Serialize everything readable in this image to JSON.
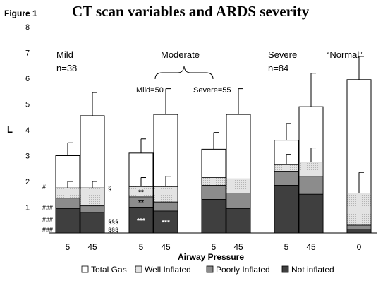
{
  "figure_label": "Figure 1",
  "chart_data": {
    "type": "bar",
    "title": "CT scan variables and ARDS severity",
    "xlabel": "Airway Pressure",
    "ylabel": "L",
    "ylim": [
      0,
      8
    ],
    "yticks": [
      "1",
      "2",
      "3",
      "4",
      "5",
      "6",
      "7",
      "8"
    ],
    "legend": [
      "Total Gas",
      "Well Inflated",
      "Poorly Inflated",
      "Not inflated"
    ],
    "groups": [
      {
        "label": "Mild",
        "sublabel": "n=38"
      },
      {
        "label": "Moderate",
        "sublabel": ""
      },
      {
        "label": "Severe",
        "sublabel": "n=84"
      },
      {
        "label": "“Normal”",
        "sublabel": ""
      }
    ],
    "subgroups": [
      {
        "label": "Mild=50"
      },
      {
        "label": "Severe=55"
      }
    ],
    "colors": {
      "total_gas": "#ffffff",
      "well_inflated": "#e3e3e3",
      "poorly_inflated": "#8c8c8c",
      "not_inflated": "#3f3f3f",
      "error_bar": "#000000"
    },
    "bars": [
      {
        "group": "Mild",
        "pressure": "5",
        "not_inflated": 0.95,
        "poorly_inflated": 0.4,
        "well_inflated": 0.4,
        "total_gas": 3.0,
        "error": 0.5,
        "well_error": 0.25,
        "marks": {
          "not_inflated": "",
          "poorly_inflated": ""
        }
      },
      {
        "group": "Mild",
        "pressure": "45",
        "not_inflated": 0.8,
        "poorly_inflated": 0.25,
        "well_inflated": 0.7,
        "total_gas": 4.55,
        "error": 0.9,
        "well_error": 0.25,
        "marks": {
          "not_inflated": "",
          "poorly_inflated": ""
        }
      },
      {
        "group": "Moderate",
        "pressure": "5",
        "not_inflated": 1.0,
        "poorly_inflated": 0.4,
        "well_inflated": 0.4,
        "total_gas": 3.1,
        "error": 0.55,
        "well_error": 0.35,
        "marks": {
          "not_inflated": "***",
          "poorly_inflated": "**",
          "well_inflated": "**"
        }
      },
      {
        "group": "Moderate",
        "pressure": "45",
        "not_inflated": 0.85,
        "poorly_inflated": 0.35,
        "well_inflated": 0.6,
        "total_gas": 4.6,
        "error": 1.0,
        "well_error": 0.4,
        "marks": {
          "not_inflated": "***",
          "poorly_inflated": ""
        }
      },
      {
        "group": "Moderate",
        "pressure": "5",
        "not_inflated": 1.3,
        "poorly_inflated": 0.55,
        "well_inflated": 0.3,
        "total_gas": 3.25,
        "error": 0.65,
        "well_error": 0.0,
        "marks": {
          "not_inflated": "",
          "poorly_inflated": ""
        }
      },
      {
        "group": "Moderate",
        "pressure": "45",
        "not_inflated": 0.95,
        "poorly_inflated": 0.6,
        "well_inflated": 0.55,
        "total_gas": 4.6,
        "error": 1.0,
        "well_error": 0.0,
        "marks": {
          "not_inflated": "",
          "poorly_inflated": ""
        }
      },
      {
        "group": "Severe",
        "pressure": "5",
        "not_inflated": 1.85,
        "poorly_inflated": 0.55,
        "well_inflated": 0.25,
        "total_gas": 3.6,
        "error": 0.65,
        "well_error": 0.4,
        "marks": {
          "not_inflated": "",
          "poorly_inflated": ""
        }
      },
      {
        "group": "Severe",
        "pressure": "45",
        "not_inflated": 1.5,
        "poorly_inflated": 0.7,
        "well_inflated": 0.55,
        "total_gas": 4.9,
        "error": 1.3,
        "well_error": 0.55,
        "marks": {
          "not_inflated": "",
          "poorly_inflated": ""
        }
      },
      {
        "group": "“Normal”",
        "pressure": "0",
        "not_inflated": 0.15,
        "poorly_inflated": 0.15,
        "well_inflated": 1.25,
        "total_gas": 5.95,
        "error": 0.9,
        "well_error": 0.8,
        "marks": {
          "not_inflated": "",
          "poorly_inflated": ""
        }
      }
    ],
    "annotations": {
      "left_hash": [
        "#",
        "###",
        "###",
        "###"
      ],
      "right_marks": [
        "§",
        "§§§",
        "§§§"
      ]
    }
  }
}
